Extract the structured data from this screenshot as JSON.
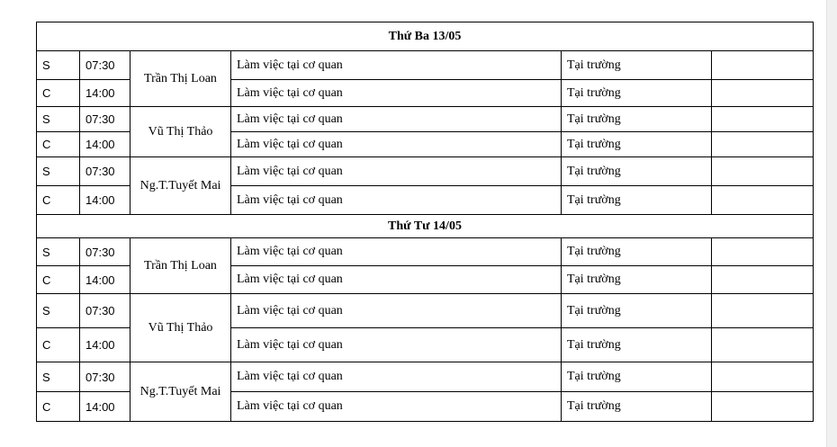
{
  "days": [
    {
      "title": "Thứ Ba 13/05",
      "people": [
        {
          "name": "Trần Thị Loan",
          "rows": [
            {
              "session": "S",
              "time": "07:30",
              "task": "Làm việc tại cơ quan",
              "place": "Tại trường",
              "note": ""
            },
            {
              "session": "C",
              "time": "14:00",
              "task": "Làm việc tại cơ quan",
              "place": "Tại trường",
              "note": ""
            }
          ]
        },
        {
          "name": "Vũ Thị Thảo",
          "rows": [
            {
              "session": "S",
              "time": "07:30",
              "task": "Làm việc tại cơ quan",
              "place": "Tại trường",
              "note": ""
            },
            {
              "session": "C",
              "time": "14:00",
              "task": "Làm việc tại cơ quan",
              "place": "Tại trường",
              "note": ""
            }
          ]
        },
        {
          "name": "Ng.T.Tuyết Mai",
          "rows": [
            {
              "session": "S",
              "time": "07:30",
              "task": "Làm việc tại cơ quan",
              "place": "Tại trường",
              "note": ""
            },
            {
              "session": "C",
              "time": "14:00",
              "task": "Làm việc tại cơ quan",
              "place": "Tại trường",
              "note": ""
            }
          ]
        }
      ]
    },
    {
      "title": "Thứ Tư 14/05",
      "people": [
        {
          "name": "Trần Thị Loan",
          "rows": [
            {
              "session": "S",
              "time": "07:30",
              "task": "Làm việc tại cơ quan",
              "place": "Tại trường",
              "note": ""
            },
            {
              "session": "C",
              "time": "14:00",
              "task": "Làm việc tại cơ quan",
              "place": "Tại trường",
              "note": ""
            }
          ]
        },
        {
          "name": "Vũ Thị Thảo",
          "rows": [
            {
              "session": "S",
              "time": "07:30",
              "task": "Làm việc tại cơ quan",
              "place": "Tại trường",
              "note": ""
            },
            {
              "session": "C",
              "time": "14:00",
              "task": "Làm việc tại cơ quan",
              "place": "Tại trường",
              "note": ""
            }
          ]
        },
        {
          "name": "Ng.T.Tuyết Mai",
          "rows": [
            {
              "session": "S",
              "time": "07:30",
              "task": "Làm việc tại cơ quan",
              "place": "Tại trường",
              "note": ""
            },
            {
              "session": "C",
              "time": "14:00",
              "task": "Làm việc tại cơ quan",
              "place": "Tại trường",
              "note": ""
            }
          ]
        }
      ]
    }
  ]
}
